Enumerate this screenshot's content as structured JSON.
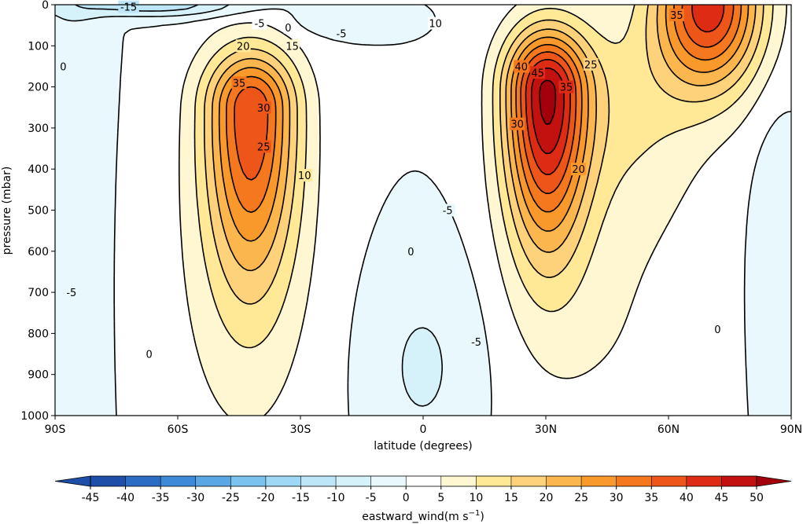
{
  "chart_data": {
    "type": "contour",
    "xlabel": "latitude (degrees)",
    "ylabel": "pressure (mbar)",
    "x_ticks": [
      {
        "value": -90,
        "label": "90S"
      },
      {
        "value": -60,
        "label": "60S"
      },
      {
        "value": -30,
        "label": "30S"
      },
      {
        "value": 0,
        "label": "0"
      },
      {
        "value": 30,
        "label": "30N"
      },
      {
        "value": 60,
        "label": "60N"
      },
      {
        "value": 90,
        "label": "90N"
      }
    ],
    "y_ticks": [
      0,
      100,
      200,
      300,
      400,
      500,
      600,
      700,
      800,
      900,
      1000
    ],
    "xlim": [
      -90,
      90
    ],
    "ylim": [
      1000,
      0
    ],
    "levels": [
      -45,
      -40,
      -35,
      -30,
      -25,
      -20,
      -15,
      -10,
      -5,
      0,
      5,
      10,
      15,
      20,
      25,
      30,
      35,
      40,
      45,
      50
    ],
    "level_colors": [
      "#1e4fa8",
      "#2b6cc4",
      "#3d8ad8",
      "#5aa7e6",
      "#7cc2ef",
      "#9ed8f5",
      "#bde7f9",
      "#d5f2fb",
      "#e8f8fc",
      "#ffffff",
      "#fff6d2",
      "#ffe896",
      "#fdd27a",
      "#fbb64e",
      "#f9992b",
      "#f5781e",
      "#ee5518",
      "#de2c14",
      "#c2110f",
      "#a4000c"
    ],
    "colorbar": {
      "label": "eastward_wind(m s",
      "label_sup": "−1",
      "label_end": ")",
      "tick_labels": [
        "-45",
        "-40",
        "-35",
        "-30",
        "-25",
        "-20",
        "-15",
        "-10",
        "-5",
        "0",
        "5",
        "10",
        "15",
        "20",
        "25",
        "30",
        "35",
        "40",
        "45",
        "50"
      ]
    },
    "jets": [
      {
        "lat": -42,
        "p": 250,
        "peak": 37,
        "wlat": 11,
        "wp_up": 140,
        "wp_dn": 420
      },
      {
        "lat": 30,
        "p": 210,
        "peak": 47,
        "wlat": 10,
        "wp_up": 150,
        "wp_dn": 380
      },
      {
        "lat": 70,
        "p": 0,
        "peak": 42,
        "wlat": 13,
        "wp_up": 60,
        "wp_dn": 200
      }
    ],
    "contour_labels": [
      {
        "text": "-15",
        "lat": -72,
        "p": 5
      },
      {
        "text": "-5",
        "lat": -40,
        "p": 45
      },
      {
        "text": "0",
        "lat": -33,
        "p": 55
      },
      {
        "text": "-5",
        "lat": -20,
        "p": 70
      },
      {
        "text": "20",
        "lat": -44,
        "p": 100
      },
      {
        "text": "15",
        "lat": -32,
        "p": 100
      },
      {
        "text": "35",
        "lat": -45,
        "p": 190
      },
      {
        "text": "30",
        "lat": -39,
        "p": 250
      },
      {
        "text": "25",
        "lat": -39,
        "p": 345
      },
      {
        "text": "10",
        "lat": -29,
        "p": 415
      },
      {
        "text": "0",
        "lat": -88,
        "p": 150
      },
      {
        "text": "-5",
        "lat": -86,
        "p": 700
      },
      {
        "text": "0",
        "lat": -67,
        "p": 850
      },
      {
        "text": "0",
        "lat": -3,
        "p": 600
      },
      {
        "text": "-5",
        "lat": 6,
        "p": 500
      },
      {
        "text": "-5",
        "lat": 13,
        "p": 820
      },
      {
        "text": "10",
        "lat": 3,
        "p": 45
      },
      {
        "text": "40",
        "lat": 24,
        "p": 150
      },
      {
        "text": "45",
        "lat": 28,
        "p": 165
      },
      {
        "text": "35",
        "lat": 35,
        "p": 200
      },
      {
        "text": "25",
        "lat": 41,
        "p": 145
      },
      {
        "text": "30",
        "lat": 23,
        "p": 290
      },
      {
        "text": "20",
        "lat": 38,
        "p": 400
      },
      {
        "text": "35",
        "lat": 62,
        "p": 25
      },
      {
        "text": "0",
        "lat": 72,
        "p": 790
      }
    ]
  }
}
